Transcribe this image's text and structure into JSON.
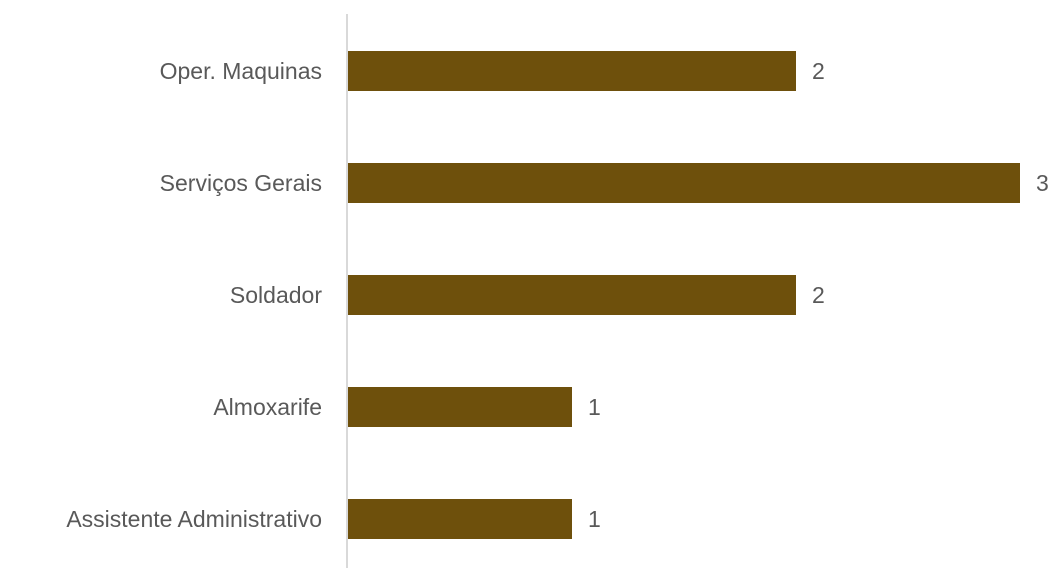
{
  "chart_data": {
    "type": "bar",
    "orientation": "horizontal",
    "categories": [
      "Oper. Maquinas",
      "Serviços Gerais",
      "Soldador",
      "Almoxarife",
      "Assistente Administrativo"
    ],
    "values": [
      2,
      3,
      2,
      1,
      1
    ],
    "data_labels": [
      "2",
      "3",
      "2",
      "1",
      "1"
    ],
    "title": "",
    "xlabel": "",
    "ylabel": "",
    "xlim": [
      0,
      3
    ],
    "grid": false,
    "legend": "none",
    "colors": {
      "bar": "#6E500C",
      "axis": "#D9D9D9",
      "text": "#595959"
    }
  }
}
